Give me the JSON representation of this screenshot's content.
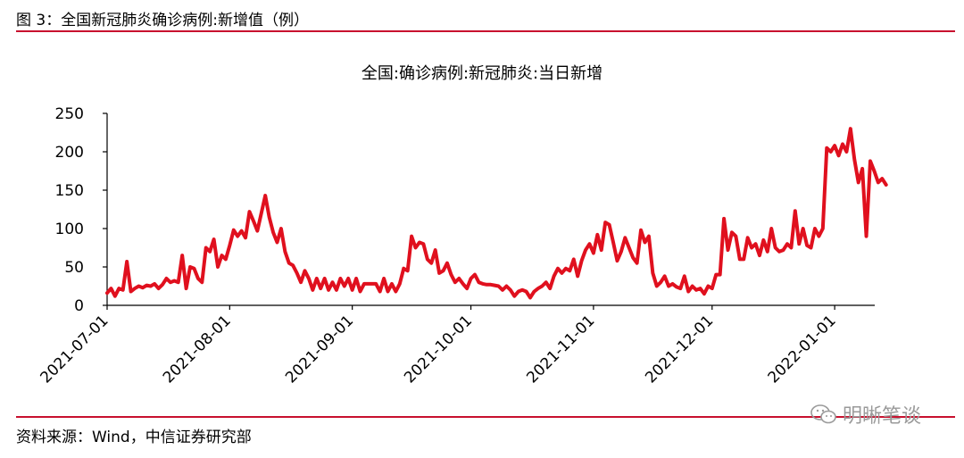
{
  "figure": {
    "title": "图 3：全国新冠肺炎确诊病例:新增值（例）",
    "source": "资料来源：Wind，中信证券研究部",
    "watermark": "明晰笔谈"
  },
  "colors": {
    "series": "#e0101e",
    "rule": "#c8102e",
    "axis": "#000000"
  },
  "chart_data": {
    "type": "line",
    "title": "全国:确诊病例:新冠肺炎:当日新增",
    "xlabel": "",
    "ylabel": "",
    "ylim": [
      0,
      250
    ],
    "yticks": [
      0,
      50,
      100,
      150,
      200,
      250
    ],
    "xticks": [
      "2021-07-01",
      "2021-08-01",
      "2021-09-01",
      "2021-10-01",
      "2021-11-01",
      "2021-12-01",
      "2022-01-01"
    ],
    "grid": false,
    "legend": "none",
    "series": [
      {
        "values": [
          16,
          22,
          12,
          22,
          20,
          57,
          18,
          22,
          25,
          23,
          26,
          25,
          28,
          22,
          27,
          35,
          30,
          32,
          30,
          65,
          22,
          50,
          48,
          35,
          30,
          75,
          70,
          86,
          50,
          65,
          60,
          78,
          98,
          90,
          97,
          88,
          122,
          110,
          97,
          120,
          143,
          115,
          95,
          82,
          100,
          70,
          55,
          52,
          42,
          30,
          45,
          35,
          20,
          35,
          22,
          35,
          20,
          30,
          20,
          35,
          25,
          35,
          20,
          35,
          18,
          28,
          28,
          28,
          28,
          18,
          35,
          18,
          28,
          18,
          28,
          48,
          45,
          90,
          75,
          82,
          80,
          60,
          55,
          72,
          42,
          45,
          55,
          40,
          30,
          35,
          28,
          22,
          35,
          40,
          30,
          28,
          27,
          27,
          26,
          25,
          20,
          25,
          20,
          12,
          18,
          20,
          18,
          10,
          18,
          22,
          25,
          30,
          22,
          38,
          48,
          42,
          48,
          45,
          60,
          38,
          58,
          72,
          80,
          68,
          92,
          72,
          108,
          105,
          82,
          58,
          70,
          88,
          75,
          62,
          55,
          98,
          82,
          90,
          42,
          25,
          30,
          38,
          25,
          28,
          24,
          22,
          38,
          18,
          25,
          20,
          22,
          15,
          25,
          22,
          40,
          40,
          113,
          72,
          95,
          90,
          60,
          60,
          88,
          75,
          80,
          65,
          85,
          70,
          100,
          75,
          70,
          72,
          80,
          75,
          123,
          80,
          100,
          78,
          75,
          100,
          90,
          100,
          205,
          200,
          208,
          195,
          210,
          200,
          230,
          190,
          160,
          178,
          90,
          188,
          175,
          160,
          165,
          157
        ]
      }
    ]
  }
}
